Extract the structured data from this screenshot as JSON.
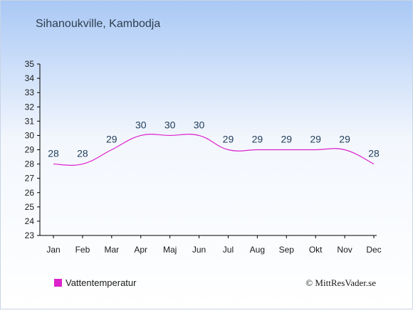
{
  "header": {
    "title": "Sihanoukville, Kambodja"
  },
  "footer": {
    "legend_label": "Vattentemperatur",
    "copyright": "© MittResVader.se"
  },
  "colors": {
    "background_top": "#a9c8f5",
    "background_bottom": "#ffffff",
    "series": "#dd22cc",
    "text": "#1f3c5a",
    "axis": "#000000"
  },
  "chart_data": {
    "type": "line",
    "title": "Sihanoukville, Kambodja",
    "xlabel": "",
    "ylabel": "",
    "categories": [
      "Jan",
      "Feb",
      "Mar",
      "Apr",
      "Maj",
      "Jun",
      "Jul",
      "Aug",
      "Sep",
      "Okt",
      "Nov",
      "Dec"
    ],
    "series": [
      {
        "name": "Vattentemperatur",
        "values": [
          28,
          28,
          29,
          30,
          30,
          30,
          29,
          29,
          29,
          29,
          29,
          28
        ]
      }
    ],
    "data_labels": [
      "28",
      "28",
      "29",
      "30",
      "30",
      "30",
      "29",
      "29",
      "29",
      "29",
      "29",
      "28"
    ],
    "ylim": [
      23,
      35
    ],
    "yticks": [
      "23",
      "24",
      "25",
      "26",
      "27",
      "28",
      "29",
      "30",
      "31",
      "32",
      "33",
      "34",
      "35"
    ],
    "grid": false,
    "legend_position": "bottom-left"
  }
}
